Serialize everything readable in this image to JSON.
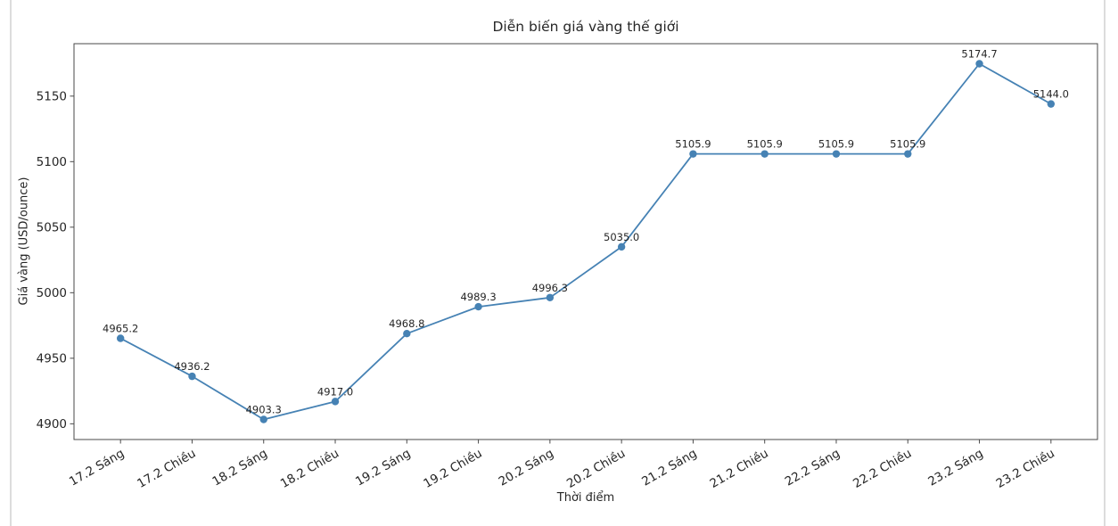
{
  "page": {
    "background": "#ffffff",
    "edge_color": "#dcdcdc"
  },
  "chart_data": {
    "type": "line",
    "title": "Diễn biến giá vàng thế giới",
    "xlabel": "Thời điểm",
    "ylabel": "Giá vàng (USD/ounce)",
    "categories": [
      "17.2 Sáng",
      "17.2 Chiều",
      "18.2 Sáng",
      "18.2 Chiều",
      "19.2 Sáng",
      "19.2 Chiều",
      "20.2 Sáng",
      "20.2 Chiều",
      "21.2 Sáng",
      "21.2 Chiều",
      "22.2 Sáng",
      "22.2 Chiều",
      "23.2 Sáng",
      "23.2 Chiều"
    ],
    "values": [
      4965.2,
      4936.2,
      4903.3,
      4917.0,
      4968.8,
      4989.3,
      4996.3,
      5035.0,
      5105.9,
      5105.9,
      5105.9,
      5105.9,
      5174.7,
      5144.0
    ],
    "point_label_decimals": 1,
    "yticks": [
      4900,
      4950,
      5000,
      5050,
      5100,
      5150
    ],
    "ylim": [
      4888,
      5190
    ],
    "x_margin": 0.65,
    "x_tick_rotation": -30,
    "grid": false,
    "legend": "none",
    "line_color": "#4682b4",
    "marker": "circle",
    "text_color": "#262626",
    "spine_color": "#4a4a4a"
  }
}
